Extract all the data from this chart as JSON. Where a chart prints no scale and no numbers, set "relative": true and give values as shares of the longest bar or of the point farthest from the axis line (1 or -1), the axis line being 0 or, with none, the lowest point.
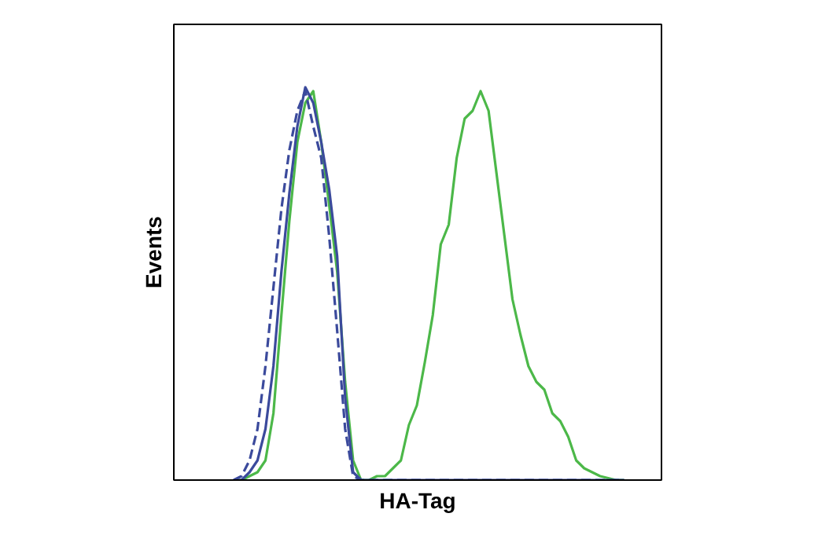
{
  "chart_data": {
    "type": "line",
    "relative": true,
    "xlabel": "HA-Tag",
    "ylabel": "Events",
    "categories": [
      null,
      null,
      null,
      null,
      null,
      null,
      null,
      null,
      null,
      null,
      null,
      null,
      null,
      null,
      null,
      null,
      null,
      null,
      null,
      null,
      null,
      null,
      null,
      null,
      null,
      null,
      null,
      null,
      null,
      null,
      null,
      null,
      null,
      null,
      null,
      null,
      null,
      null,
      null,
      null,
      null,
      null,
      null,
      null,
      null,
      null,
      null,
      null,
      null,
      null
    ],
    "series": [
      {
        "color": "#4cb849",
        "line_style": "solid",
        "values": [
          0,
          0,
          0.01,
          0.02,
          0.05,
          0.17,
          0.42,
          0.66,
          0.86,
          0.96,
          0.99,
          0.86,
          0.7,
          0.53,
          0.25,
          0.05,
          0,
          0,
          0.01,
          0.01,
          0.03,
          0.05,
          0.14,
          0.19,
          0.3,
          0.42,
          0.6,
          0.65,
          0.82,
          0.92,
          0.94,
          0.99,
          0.94,
          0.78,
          0.62,
          0.46,
          0.37,
          0.29,
          0.25,
          0.23,
          0.17,
          0.15,
          0.11,
          0.05,
          0.03,
          0.02,
          0.01,
          0.005,
          0,
          0
        ]
      },
      {
        "color": "#3b4a9c",
        "line_style": "solid",
        "values": [
          0,
          0,
          0.02,
          0.05,
          0.13,
          0.29,
          0.53,
          0.73,
          0.9,
          1,
          0.96,
          0.86,
          0.74,
          0.57,
          0.21,
          0.02,
          0,
          0,
          0,
          0,
          0,
          0,
          0,
          0,
          0,
          0,
          0,
          0,
          0,
          0,
          0,
          0,
          0,
          0,
          0,
          0,
          0,
          0,
          0,
          0,
          0,
          0,
          0,
          0,
          0,
          0,
          0,
          0,
          0,
          0
        ]
      },
      {
        "color": "#3b4a9c",
        "line_style": "dashed",
        "values": [
          0,
          0.01,
          0.05,
          0.13,
          0.29,
          0.49,
          0.69,
          0.84,
          0.94,
          0.99,
          0.9,
          0.82,
          0.62,
          0.38,
          0.13,
          0.01,
          0,
          0,
          0,
          0,
          0,
          0,
          0,
          0,
          0,
          0,
          0,
          0,
          0,
          0,
          0,
          0,
          0,
          0,
          0,
          0,
          0,
          0,
          0,
          0,
          0,
          0,
          0,
          0,
          0,
          0,
          0,
          0,
          0,
          0
        ]
      }
    ]
  }
}
